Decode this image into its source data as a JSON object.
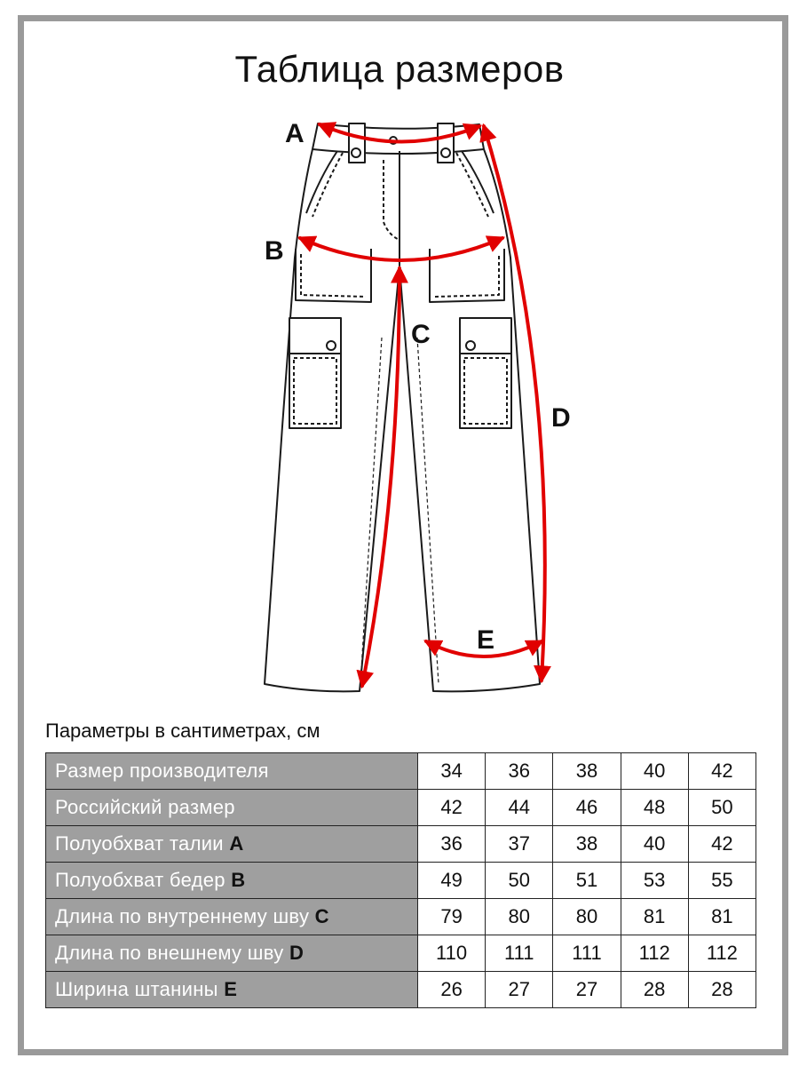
{
  "title": "Таблица размеров",
  "caption": "Параметры в сантиметрах, см",
  "dimension_labels": {
    "a": "A",
    "b": "B",
    "c": "C",
    "d": "D",
    "e": "E"
  },
  "colors": {
    "arrow": "#e10000",
    "header_bg": "#9f9f9f",
    "frame": "#9a9a9a"
  },
  "table": {
    "rows": [
      {
        "label": "Размер производителя",
        "letter": "",
        "values": [
          "34",
          "36",
          "38",
          "40",
          "42"
        ]
      },
      {
        "label": "Российский размер",
        "letter": "",
        "values": [
          "42",
          "44",
          "46",
          "48",
          "50"
        ]
      },
      {
        "label": "Полуобхват талии",
        "letter": "A",
        "values": [
          "36",
          "37",
          "38",
          "40",
          "42"
        ]
      },
      {
        "label": "Полуобхват бедер",
        "letter": "B",
        "values": [
          "49",
          "50",
          "51",
          "53",
          "55"
        ]
      },
      {
        "label": "Длина по внутреннему шву",
        "letter": "C",
        "values": [
          "79",
          "80",
          "80",
          "81",
          "81"
        ]
      },
      {
        "label": "Длина по внешнему шву",
        "letter": "D",
        "values": [
          "110",
          "111",
          "111",
          "112",
          "112"
        ]
      },
      {
        "label": "Ширина штанины",
        "letter": "E",
        "values": [
          "26",
          "27",
          "27",
          "28",
          "28"
        ]
      }
    ]
  }
}
